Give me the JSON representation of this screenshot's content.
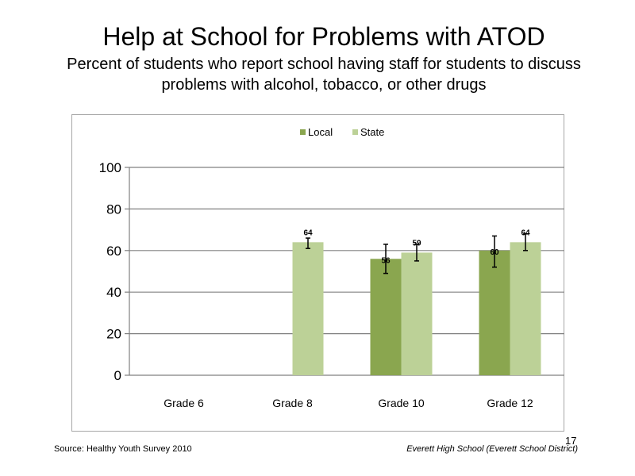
{
  "slide": {
    "title": "Help at School for Problems with ATOD",
    "subtitle": "Percent of students who report school having staff for students to discuss problems with alcohol, tobacco, or other drugs",
    "source": "Source: Healthy Youth Survey 2010",
    "school": "Everett High School (Everett School District)",
    "slide_number": "17"
  },
  "chart_data": {
    "type": "bar",
    "categories": [
      "Grade 6",
      "Grade 8",
      "Grade 10",
      "Grade 12"
    ],
    "series": [
      {
        "name": "Local",
        "color": "#8aa64f",
        "values": [
          null,
          null,
          56,
          60
        ],
        "error_low": [
          null,
          null,
          49,
          52
        ],
        "error_high": [
          null,
          null,
          63,
          67
        ]
      },
      {
        "name": "State",
        "color": "#bcd197",
        "values": [
          null,
          64,
          59,
          64
        ],
        "error_low": [
          null,
          61,
          55,
          60
        ],
        "error_high": [
          null,
          66,
          63,
          68
        ]
      }
    ],
    "ylim": [
      0,
      100
    ],
    "yticks": [
      0,
      20,
      40,
      60,
      80,
      100
    ],
    "legend": "top-center",
    "grid": true
  }
}
